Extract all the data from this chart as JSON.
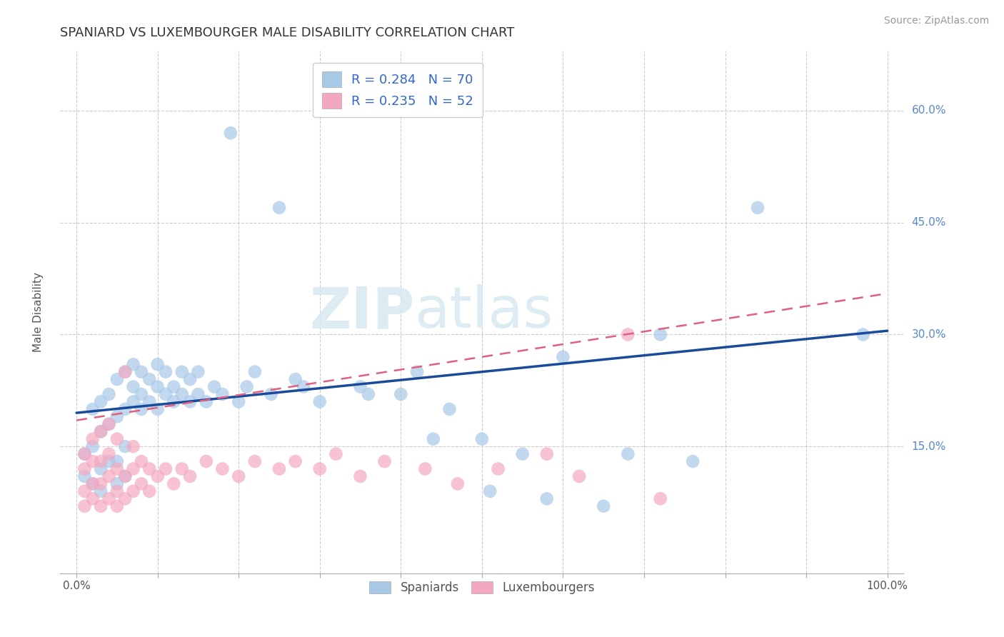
{
  "title": "SPANIARD VS LUXEMBOURGER MALE DISABILITY CORRELATION CHART",
  "source": "Source: ZipAtlas.com",
  "xlabel": "",
  "ylabel": "Male Disability",
  "xlim": [
    -0.02,
    1.02
  ],
  "ylim": [
    -0.02,
    0.68
  ],
  "xticks": [
    0.0,
    0.1,
    0.2,
    0.3,
    0.4,
    0.5,
    0.6,
    0.7,
    0.8,
    0.9,
    1.0
  ],
  "xtick_labels": [
    "0.0%",
    "",
    "",
    "",
    "",
    "",
    "",
    "",
    "",
    "",
    "100.0%"
  ],
  "ytick_positions": [
    0.15,
    0.3,
    0.45,
    0.6
  ],
  "ytick_labels": [
    "15.0%",
    "30.0%",
    "45.0%",
    "60.0%"
  ],
  "spaniards_R": 0.284,
  "spaniards_N": 70,
  "luxembourgers_R": 0.235,
  "luxembourgers_N": 52,
  "blue_color": "#A8C8E8",
  "pink_color": "#F4A8C0",
  "blue_line_color": "#1A4A9A",
  "pink_line_color": "#E06080",
  "background_color": "#FFFFFF",
  "watermark_zip": "ZIP",
  "watermark_atlas": "atlas",
  "spaniards_x": [
    0.01,
    0.01,
    0.02,
    0.02,
    0.02,
    0.03,
    0.03,
    0.03,
    0.03,
    0.04,
    0.04,
    0.04,
    0.05,
    0.05,
    0.05,
    0.05,
    0.06,
    0.06,
    0.06,
    0.06,
    0.07,
    0.07,
    0.07,
    0.08,
    0.08,
    0.08,
    0.09,
    0.09,
    0.1,
    0.1,
    0.1,
    0.11,
    0.11,
    0.12,
    0.12,
    0.13,
    0.13,
    0.14,
    0.14,
    0.15,
    0.15,
    0.16,
    0.17,
    0.18,
    0.19,
    0.2,
    0.21,
    0.22,
    0.24,
    0.25,
    0.27,
    0.28,
    0.3,
    0.35,
    0.36,
    0.4,
    0.42,
    0.44,
    0.46,
    0.5,
    0.51,
    0.55,
    0.58,
    0.6,
    0.65,
    0.68,
    0.72,
    0.76,
    0.84,
    0.97
  ],
  "spaniards_y": [
    0.11,
    0.14,
    0.1,
    0.15,
    0.2,
    0.09,
    0.12,
    0.17,
    0.21,
    0.13,
    0.18,
    0.22,
    0.1,
    0.13,
    0.19,
    0.24,
    0.11,
    0.15,
    0.2,
    0.25,
    0.21,
    0.23,
    0.26,
    0.2,
    0.22,
    0.25,
    0.21,
    0.24,
    0.2,
    0.23,
    0.26,
    0.22,
    0.25,
    0.21,
    0.23,
    0.22,
    0.25,
    0.21,
    0.24,
    0.22,
    0.25,
    0.21,
    0.23,
    0.22,
    0.57,
    0.21,
    0.23,
    0.25,
    0.22,
    0.47,
    0.24,
    0.23,
    0.21,
    0.23,
    0.22,
    0.22,
    0.25,
    0.16,
    0.2,
    0.16,
    0.09,
    0.14,
    0.08,
    0.27,
    0.07,
    0.14,
    0.3,
    0.13,
    0.47,
    0.3
  ],
  "luxembourgers_x": [
    0.01,
    0.01,
    0.01,
    0.01,
    0.02,
    0.02,
    0.02,
    0.02,
    0.03,
    0.03,
    0.03,
    0.03,
    0.04,
    0.04,
    0.04,
    0.04,
    0.05,
    0.05,
    0.05,
    0.05,
    0.06,
    0.06,
    0.06,
    0.07,
    0.07,
    0.07,
    0.08,
    0.08,
    0.09,
    0.09,
    0.1,
    0.11,
    0.12,
    0.13,
    0.14,
    0.16,
    0.18,
    0.2,
    0.22,
    0.25,
    0.27,
    0.3,
    0.32,
    0.35,
    0.38,
    0.43,
    0.47,
    0.52,
    0.58,
    0.62,
    0.68,
    0.72
  ],
  "luxembourgers_y": [
    0.07,
    0.09,
    0.12,
    0.14,
    0.08,
    0.1,
    0.13,
    0.16,
    0.07,
    0.1,
    0.13,
    0.17,
    0.08,
    0.11,
    0.14,
    0.18,
    0.07,
    0.09,
    0.12,
    0.16,
    0.08,
    0.11,
    0.25,
    0.09,
    0.12,
    0.15,
    0.1,
    0.13,
    0.09,
    0.12,
    0.11,
    0.12,
    0.1,
    0.12,
    0.11,
    0.13,
    0.12,
    0.11,
    0.13,
    0.12,
    0.13,
    0.12,
    0.14,
    0.11,
    0.13,
    0.12,
    0.1,
    0.12,
    0.14,
    0.11,
    0.3,
    0.08
  ],
  "blue_trend_x0": 0.0,
  "blue_trend_y0": 0.195,
  "blue_trend_x1": 1.0,
  "blue_trend_y1": 0.305,
  "pink_trend_x0": 0.0,
  "pink_trend_y0": 0.185,
  "pink_trend_x1": 1.0,
  "pink_trend_y1": 0.355
}
